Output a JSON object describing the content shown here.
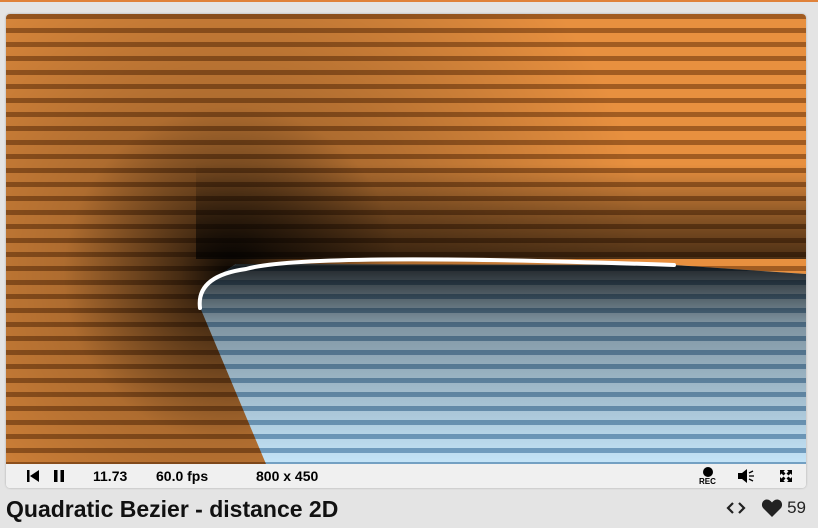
{
  "shader": {
    "title": "Quadratic Bezier - distance 2D",
    "likes": "59"
  },
  "player": {
    "time": "11.73",
    "fps": "60.0 fps",
    "resolution": "800 x 450",
    "rec_label": "REC"
  },
  "icons": {
    "rewind": "rewind-icon",
    "pause": "pause-icon",
    "record": "record-icon",
    "volume": "volume-icon",
    "fullscreen": "fullscreen-icon",
    "code": "code-icon",
    "like": "heart-icon"
  },
  "colors": {
    "accent": "#e0823a",
    "outside": "#e8903f",
    "inside": "#a6d2f0",
    "curve": "#ffffff"
  }
}
